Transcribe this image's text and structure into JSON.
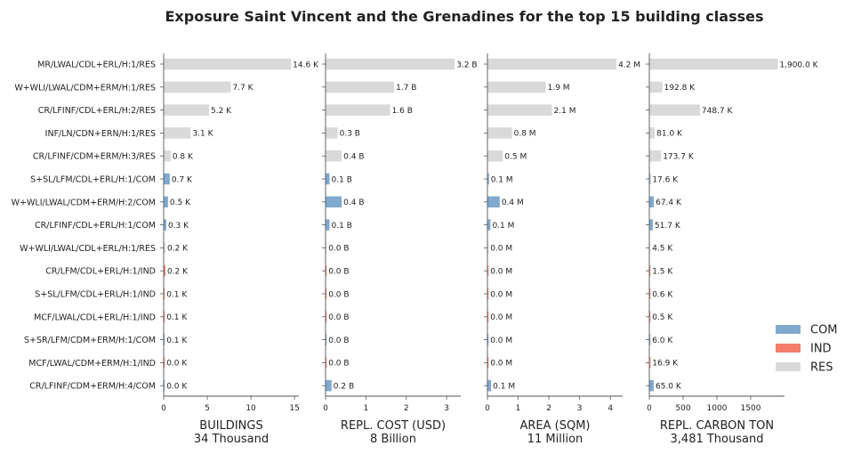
{
  "title": "Exposure Saint Vincent and the Grenadines for the top 15 building classes",
  "colors": {
    "COM": "#7fa9cf",
    "IND": "#f47e6a",
    "RES": "#d9d9d9"
  },
  "legend": [
    {
      "key": "COM",
      "label": "COM"
    },
    {
      "key": "IND",
      "label": "IND"
    },
    {
      "key": "RES",
      "label": "RES"
    }
  ],
  "chart_data": {
    "type": "bar",
    "orientation": "horizontal",
    "categories": [
      "MR/LWAL/CDL+ERL/H:1/RES",
      "W+WLI/LWAL/CDM+ERM/H:1/RES",
      "CR/LFINF/CDL+ERL/H:2/RES",
      "INF/LN/CDN+ERN/H:1/RES",
      "CR/LFINF/CDM+ERM/H:3/RES",
      "S+SL/LFM/CDL+ERL/H:1/COM",
      "W+WLI/LWAL/CDM+ERM/H:2/COM",
      "CR/LFINF/CDL+ERL/H:1/COM",
      "W+WLI/LWAL/CDL+ERL/H:1/RES",
      "CR/LFM/CDL+ERL/H:1/IND",
      "S+SL/LFM/CDL+ERL/H:1/IND",
      "MCF/LWAL/CDL+ERL/H:1/IND",
      "S+SR/LFM/CDM+ERM/H:1/COM",
      "MCF/LWAL/CDM+ERM/H:1/IND",
      "CR/LFINF/CDM+ERM/H:4/COM"
    ],
    "occupancy": [
      "RES",
      "RES",
      "RES",
      "RES",
      "RES",
      "COM",
      "COM",
      "COM",
      "RES",
      "IND",
      "IND",
      "IND",
      "COM",
      "IND",
      "COM"
    ],
    "panels": [
      {
        "xlabel": "BUILDINGS",
        "subtitle": "34 Thousand",
        "xlim": [
          0,
          15.5
        ],
        "ticks": [
          0,
          5,
          10,
          15
        ],
        "tick_labels": [
          "0",
          "5",
          "10",
          "15"
        ],
        "values": [
          14.6,
          7.7,
          5.2,
          3.1,
          0.8,
          0.7,
          0.5,
          0.3,
          0.2,
          0.2,
          0.1,
          0.1,
          0.1,
          0.04,
          0.04
        ],
        "labels": [
          "14.6 K",
          "7.7 K",
          "5.2 K",
          "3.1 K",
          "0.8 K",
          "0.7 K",
          "0.5 K",
          "0.3 K",
          "0.2 K",
          "0.2 K",
          "0.1 K",
          "0.1 K",
          "0.1 K",
          "0.0 K",
          "0.0 K"
        ]
      },
      {
        "xlabel": "REPL. COST (USD)",
        "subtitle": "8 Billion",
        "xlim": [
          0,
          3.35
        ],
        "ticks": [
          0,
          1,
          2,
          3
        ],
        "tick_labels": [
          "0",
          "1",
          "2",
          "3"
        ],
        "values": [
          3.2,
          1.7,
          1.6,
          0.3,
          0.4,
          0.1,
          0.4,
          0.1,
          0.02,
          0.01,
          0.01,
          0.01,
          0.01,
          0.01,
          0.15
        ],
        "labels": [
          "3.2 B",
          "1.7 B",
          "1.6 B",
          "0.3 B",
          "0.4 B",
          "0.1 B",
          "0.4 B",
          "0.1 B",
          "0.0 B",
          "0.0 B",
          "0.0 B",
          "0.0 B",
          "0.0 B",
          "0.0 B",
          "0.2 B"
        ]
      },
      {
        "xlabel": "AREA (SQM)",
        "subtitle": "11 Million",
        "xlim": [
          0,
          4.4
        ],
        "ticks": [
          0,
          1,
          2,
          3,
          4
        ],
        "tick_labels": [
          "0",
          "1",
          "2",
          "3",
          "4"
        ],
        "values": [
          4.2,
          1.9,
          2.1,
          0.8,
          0.5,
          0.05,
          0.4,
          0.1,
          0.02,
          0.01,
          0.01,
          0.01,
          0.01,
          0.01,
          0.12
        ],
        "labels": [
          "4.2 M",
          "1.9 M",
          "2.1 M",
          "0.8 M",
          "0.5 M",
          "0.1 M",
          "0.4 M",
          "0.1 M",
          "0.0 M",
          "0.0 M",
          "0.0 M",
          "0.0 M",
          "0.0 M",
          "0.0 M",
          "0.1 M"
        ]
      },
      {
        "xlabel": "REPL. CARBON TON",
        "subtitle": "3,481 Thousand",
        "xlim": [
          0,
          2000
        ],
        "ticks": [
          0,
          500,
          1000,
          1500
        ],
        "tick_labels": [
          "0",
          "500",
          "1000",
          "1500"
        ],
        "values": [
          1900.0,
          192.8,
          748.7,
          81.0,
          173.7,
          17.6,
          67.4,
          51.7,
          4.5,
          1.5,
          0.6,
          0.5,
          6.0,
          16.9,
          65.0
        ],
        "labels": [
          "1,900.0 K",
          "192.8 K",
          "748.7 K",
          "81.0 K",
          "173.7 K",
          "17.6 K",
          "67.4 K",
          "51.7 K",
          "4.5 K",
          "1.5 K",
          "0.6 K",
          "0.5 K",
          "6.0 K",
          "16.9 K",
          "65.0 K"
        ]
      }
    ]
  }
}
